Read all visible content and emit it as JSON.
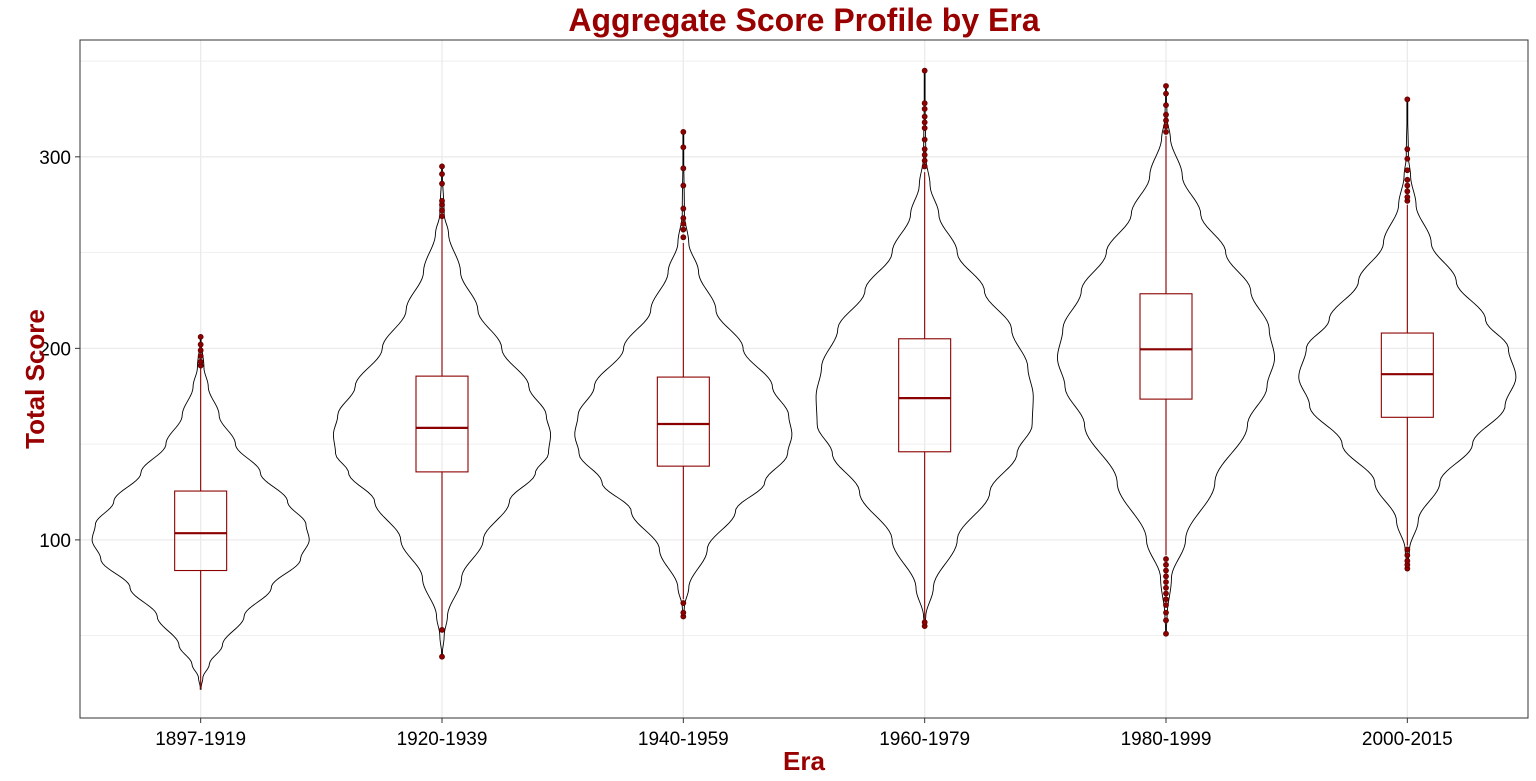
{
  "chart_data": {
    "type": "violin",
    "title": "Aggregate Score Profile by Era",
    "xlabel": "Era",
    "ylabel": "Total Score",
    "categories": [
      "1897-1919",
      "1920-1939",
      "1940-1959",
      "1960-1979",
      "1980-1999",
      "2000-2015"
    ],
    "y_ticks": [
      100,
      200,
      300
    ],
    "ylim": [
      7,
      361
    ],
    "grid": true,
    "colors": {
      "box": "#8b0000",
      "violin": "#000000",
      "outlier": "#8b0000",
      "title": "#990000",
      "grid": "#ebebeb",
      "panel_border": "#333333"
    },
    "series": [
      {
        "category": "1897-1919",
        "box": {
          "whisker_low": 22,
          "q1": 84,
          "median": 103.5,
          "q3": 125.5,
          "whisker_high": 190
        },
        "outliers": [
          191,
          193,
          196,
          199,
          202,
          206
        ],
        "violin": {
          "min": 22,
          "max": 206,
          "profile": [
            [
              22,
              0.0
            ],
            [
              28,
              0.02
            ],
            [
              35,
              0.08
            ],
            [
              45,
              0.2
            ],
            [
              60,
              0.4
            ],
            [
              75,
              0.65
            ],
            [
              90,
              0.92
            ],
            [
              100,
              1.0
            ],
            [
              108,
              0.97
            ],
            [
              120,
              0.8
            ],
            [
              135,
              0.55
            ],
            [
              150,
              0.32
            ],
            [
              165,
              0.17
            ],
            [
              180,
              0.07
            ],
            [
              190,
              0.03
            ],
            [
              206,
              0.0
            ]
          ]
        }
      },
      {
        "category": "1920-1939",
        "box": {
          "whisker_low": 54,
          "q1": 135.5,
          "median": 158.5,
          "q3": 185.5,
          "whisker_high": 268
        },
        "outliers": [
          39,
          53,
          269,
          272,
          275,
          277,
          286,
          291,
          295
        ],
        "violin": {
          "min": 39,
          "max": 295,
          "profile": [
            [
              39,
              0.0
            ],
            [
              50,
              0.02
            ],
            [
              60,
              0.05
            ],
            [
              80,
              0.18
            ],
            [
              100,
              0.38
            ],
            [
              120,
              0.62
            ],
            [
              135,
              0.86
            ],
            [
              145,
              0.98
            ],
            [
              155,
              1.0
            ],
            [
              165,
              0.96
            ],
            [
              180,
              0.8
            ],
            [
              200,
              0.55
            ],
            [
              220,
              0.33
            ],
            [
              240,
              0.17
            ],
            [
              260,
              0.06
            ],
            [
              270,
              0.02
            ],
            [
              295,
              0.0
            ]
          ]
        }
      },
      {
        "category": "1940-1959",
        "box": {
          "whisker_low": 69,
          "q1": 138.5,
          "median": 160.5,
          "q3": 185,
          "whisker_high": 255
        },
        "outliers": [
          60,
          62,
          67,
          258,
          262,
          265,
          268,
          273,
          285,
          294,
          305,
          313
        ],
        "violin": {
          "min": 60,
          "max": 313,
          "profile": [
            [
              60,
              0.0
            ],
            [
              65,
              0.01
            ],
            [
              75,
              0.05
            ],
            [
              95,
              0.22
            ],
            [
              115,
              0.48
            ],
            [
              130,
              0.75
            ],
            [
              145,
              0.96
            ],
            [
              155,
              1.0
            ],
            [
              165,
              0.97
            ],
            [
              180,
              0.82
            ],
            [
              200,
              0.55
            ],
            [
              220,
              0.3
            ],
            [
              240,
              0.14
            ],
            [
              255,
              0.05
            ],
            [
              270,
              0.01
            ],
            [
              313,
              0.0
            ]
          ]
        }
      },
      {
        "category": "1960-1979",
        "box": {
          "whisker_low": 58,
          "q1": 146,
          "median": 174,
          "q3": 205,
          "whisker_high": 292
        },
        "outliers": [
          55,
          57,
          295,
          298,
          301,
          304,
          309,
          315,
          318,
          321,
          325,
          328,
          345
        ],
        "violin": {
          "min": 55,
          "max": 345,
          "profile": [
            [
              55,
              0.0
            ],
            [
              60,
              0.01
            ],
            [
              75,
              0.08
            ],
            [
              100,
              0.3
            ],
            [
              125,
              0.6
            ],
            [
              145,
              0.85
            ],
            [
              160,
              0.99
            ],
            [
              175,
              1.0
            ],
            [
              190,
              0.95
            ],
            [
              210,
              0.8
            ],
            [
              230,
              0.55
            ],
            [
              250,
              0.3
            ],
            [
              270,
              0.13
            ],
            [
              285,
              0.05
            ],
            [
              300,
              0.01
            ],
            [
              345,
              0.0
            ]
          ]
        }
      },
      {
        "category": "1980-1999",
        "box": {
          "whisker_low": 92,
          "q1": 173.5,
          "median": 199.5,
          "q3": 228.5,
          "whisker_high": 311
        },
        "outliers": [
          51,
          58,
          62,
          66,
          69,
          72,
          75,
          78,
          81,
          84,
          87,
          90,
          313,
          316,
          319,
          322,
          327,
          333,
          337
        ],
        "violin": {
          "min": 51,
          "max": 337,
          "profile": [
            [
              51,
              0.0
            ],
            [
              60,
              0.01
            ],
            [
              80,
              0.05
            ],
            [
              100,
              0.18
            ],
            [
              130,
              0.45
            ],
            [
              160,
              0.75
            ],
            [
              180,
              0.93
            ],
            [
              195,
              1.0
            ],
            [
              210,
              0.95
            ],
            [
              230,
              0.78
            ],
            [
              250,
              0.55
            ],
            [
              270,
              0.32
            ],
            [
              290,
              0.15
            ],
            [
              310,
              0.04
            ],
            [
              320,
              0.01
            ],
            [
              337,
              0.0
            ]
          ]
        }
      },
      {
        "category": "2000-2015",
        "box": {
          "whisker_low": 97,
          "q1": 164,
          "median": 186.5,
          "q3": 208,
          "whisker_high": 275
        },
        "outliers": [
          85,
          87,
          89,
          92,
          95,
          277,
          279,
          282,
          285,
          288,
          293,
          299,
          304,
          330
        ],
        "violin": {
          "min": 85,
          "max": 330,
          "profile": [
            [
              85,
              0.0
            ],
            [
              95,
              0.02
            ],
            [
              110,
              0.1
            ],
            [
              130,
              0.3
            ],
            [
              150,
              0.6
            ],
            [
              170,
              0.9
            ],
            [
              185,
              1.0
            ],
            [
              200,
              0.93
            ],
            [
              215,
              0.72
            ],
            [
              235,
              0.45
            ],
            [
              255,
              0.22
            ],
            [
              275,
              0.08
            ],
            [
              290,
              0.03
            ],
            [
              300,
              0.01
            ],
            [
              330,
              0.0
            ]
          ]
        }
      }
    ]
  }
}
